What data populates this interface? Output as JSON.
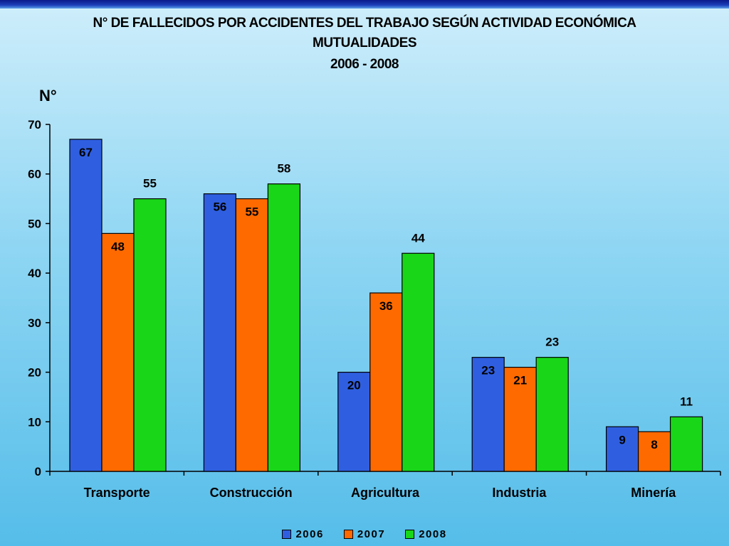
{
  "chart_data": {
    "type": "bar",
    "title": "N° DE FALLECIDOS POR ACCIDENTES DEL TRABAJO SEGÚN ACTIVIDAD ECONÓMICA",
    "subtitle_1": "MUTUALIDADES",
    "subtitle_2": "2006 - 2008",
    "ylabel": "N°",
    "xlabel": "",
    "ylim": [
      0,
      70
    ],
    "yticks": [
      0,
      10,
      20,
      30,
      40,
      50,
      60,
      70
    ],
    "categories": [
      "Transporte",
      "Construcción",
      "Agricultura",
      "Industria",
      "Minería"
    ],
    "series": [
      {
        "name": "2006",
        "color": "#2f5fe0",
        "label_color": "#000000",
        "values": [
          67,
          56,
          20,
          23,
          9
        ]
      },
      {
        "name": "2007",
        "color": "#ff6a00",
        "label_color": "#000000",
        "values": [
          48,
          55,
          36,
          21,
          8
        ]
      },
      {
        "name": "2008",
        "color": "#19d619",
        "label_color": "#000000",
        "values": [
          55,
          58,
          44,
          23,
          11
        ]
      }
    ],
    "legend_position": "bottom",
    "grid": false
  }
}
